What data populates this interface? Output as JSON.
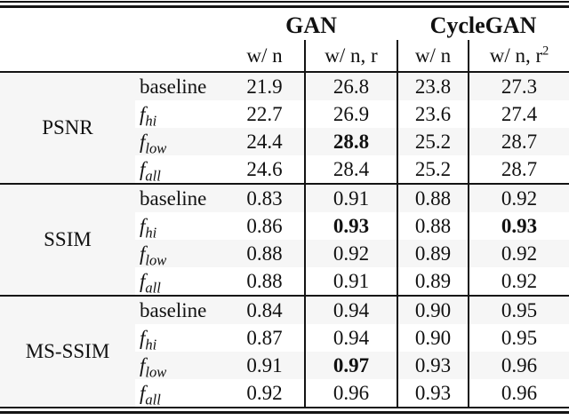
{
  "colors": {
    "rule": "#141414",
    "text": "#111111",
    "row_band": "#f6f6f6",
    "background": "#ffffff"
  },
  "table": {
    "header": {
      "groups": [
        {
          "label": "GAN"
        },
        {
          "label": "CycleGAN"
        }
      ],
      "columns": [
        {
          "base": "w/ n",
          "sup": ""
        },
        {
          "base": "w/ n, r",
          "sup": ""
        },
        {
          "base": "w/ n",
          "sup": ""
        },
        {
          "base": "w/ n, r",
          "sup": "2"
        }
      ]
    },
    "sections": [
      {
        "metric": "PSNR",
        "rows": [
          {
            "label": {
              "text": "baseline",
              "italic": false,
              "sub": ""
            },
            "values": [
              {
                "text": "21.9",
                "bold": false
              },
              {
                "text": "26.8",
                "bold": false
              },
              {
                "text": "23.8",
                "bold": false
              },
              {
                "text": "27.3",
                "bold": false
              }
            ]
          },
          {
            "label": {
              "text": "f",
              "italic": true,
              "sub": "hi"
            },
            "values": [
              {
                "text": "22.7",
                "bold": false
              },
              {
                "text": "26.9",
                "bold": false
              },
              {
                "text": "23.6",
                "bold": false
              },
              {
                "text": "27.4",
                "bold": false
              }
            ]
          },
          {
            "label": {
              "text": "f",
              "italic": true,
              "sub": "low"
            },
            "values": [
              {
                "text": "24.4",
                "bold": false
              },
              {
                "text": "28.8",
                "bold": true
              },
              {
                "text": "25.2",
                "bold": false
              },
              {
                "text": "28.7",
                "bold": false
              }
            ]
          },
          {
            "label": {
              "text": "f",
              "italic": true,
              "sub": "all"
            },
            "values": [
              {
                "text": "24.6",
                "bold": false
              },
              {
                "text": "28.4",
                "bold": false
              },
              {
                "text": "25.2",
                "bold": false
              },
              {
                "text": "28.7",
                "bold": false
              }
            ]
          }
        ]
      },
      {
        "metric": "SSIM",
        "rows": [
          {
            "label": {
              "text": "baseline",
              "italic": false,
              "sub": ""
            },
            "values": [
              {
                "text": "0.83",
                "bold": false
              },
              {
                "text": "0.91",
                "bold": false
              },
              {
                "text": "0.88",
                "bold": false
              },
              {
                "text": "0.92",
                "bold": false
              }
            ]
          },
          {
            "label": {
              "text": "f",
              "italic": true,
              "sub": "hi"
            },
            "values": [
              {
                "text": "0.86",
                "bold": false
              },
              {
                "text": "0.93",
                "bold": true
              },
              {
                "text": "0.88",
                "bold": false
              },
              {
                "text": "0.93",
                "bold": true
              }
            ]
          },
          {
            "label": {
              "text": "f",
              "italic": true,
              "sub": "low"
            },
            "values": [
              {
                "text": "0.88",
                "bold": false
              },
              {
                "text": "0.92",
                "bold": false
              },
              {
                "text": "0.89",
                "bold": false
              },
              {
                "text": "0.92",
                "bold": false
              }
            ]
          },
          {
            "label": {
              "text": "f",
              "italic": true,
              "sub": "all"
            },
            "values": [
              {
                "text": "0.88",
                "bold": false
              },
              {
                "text": "0.91",
                "bold": false
              },
              {
                "text": "0.89",
                "bold": false
              },
              {
                "text": "0.92",
                "bold": false
              }
            ]
          }
        ]
      },
      {
        "metric": "MS-SSIM",
        "rows": [
          {
            "label": {
              "text": "baseline",
              "italic": false,
              "sub": ""
            },
            "values": [
              {
                "text": "0.84",
                "bold": false
              },
              {
                "text": "0.94",
                "bold": false
              },
              {
                "text": "0.90",
                "bold": false
              },
              {
                "text": "0.95",
                "bold": false
              }
            ]
          },
          {
            "label": {
              "text": "f",
              "italic": true,
              "sub": "hi"
            },
            "values": [
              {
                "text": "0.87",
                "bold": false
              },
              {
                "text": "0.94",
                "bold": false
              },
              {
                "text": "0.90",
                "bold": false
              },
              {
                "text": "0.95",
                "bold": false
              }
            ]
          },
          {
            "label": {
              "text": "f",
              "italic": true,
              "sub": "low"
            },
            "values": [
              {
                "text": "0.91",
                "bold": false
              },
              {
                "text": "0.97",
                "bold": true
              },
              {
                "text": "0.93",
                "bold": false
              },
              {
                "text": "0.96",
                "bold": false
              }
            ]
          },
          {
            "label": {
              "text": "f",
              "italic": true,
              "sub": "all"
            },
            "values": [
              {
                "text": "0.92",
                "bold": false
              },
              {
                "text": "0.96",
                "bold": false
              },
              {
                "text": "0.93",
                "bold": false
              },
              {
                "text": "0.96",
                "bold": false
              }
            ]
          }
        ]
      }
    ]
  }
}
